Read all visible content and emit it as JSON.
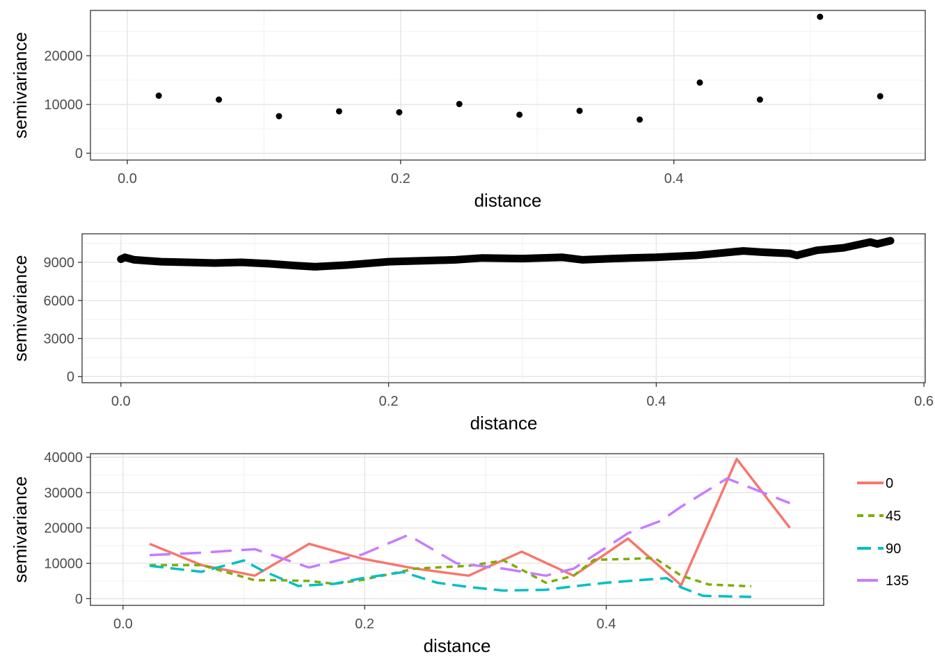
{
  "chart_data": [
    {
      "type": "scatter",
      "xlabel": "distance",
      "ylabel": "semivariance",
      "xlim": [
        -0.027,
        0.584
      ],
      "ylim": [
        -1400,
        29300
      ],
      "x_ticks": [
        0.0,
        0.2,
        0.4
      ],
      "x_tick_labels": [
        "0.0",
        "0.2",
        "0.4"
      ],
      "y_ticks": [
        0,
        10000,
        20000
      ],
      "y_tick_labels": [
        "0",
        "10000",
        "20000"
      ],
      "grid": true,
      "point_color": "#000000",
      "x": [
        0.023,
        0.067,
        0.111,
        0.155,
        0.199,
        0.243,
        0.287,
        0.331,
        0.375,
        0.419,
        0.463,
        0.507,
        0.551
      ],
      "y": [
        11800,
        11000,
        7600,
        8600,
        8400,
        10100,
        7900,
        8700,
        6900,
        14500,
        11000,
        28000,
        11700
      ]
    },
    {
      "type": "line",
      "xlabel": "distance",
      "ylabel": "semivariance",
      "xlim": [
        -0.029,
        0.601
      ],
      "ylim": [
        -480,
        11250
      ],
      "x_ticks": [
        0.0,
        0.2,
        0.4,
        0.6
      ],
      "x_tick_labels": [
        "0.0",
        "0.2",
        "0.4",
        "0.6"
      ],
      "y_ticks": [
        0,
        3000,
        6000,
        9000
      ],
      "y_tick_labels": [
        "0",
        "3000",
        "6000",
        "9000"
      ],
      "grid": true,
      "line_color": "#000000",
      "x": [
        0.0,
        0.003,
        0.01,
        0.03,
        0.05,
        0.07,
        0.09,
        0.11,
        0.13,
        0.145,
        0.17,
        0.2,
        0.25,
        0.27,
        0.3,
        0.33,
        0.345,
        0.38,
        0.4,
        0.43,
        0.45,
        0.465,
        0.48,
        0.5,
        0.505,
        0.52,
        0.54,
        0.56,
        0.565,
        0.575
      ],
      "y": [
        9250,
        9400,
        9200,
        9050,
        9000,
        8950,
        9000,
        8900,
        8750,
        8650,
        8800,
        9050,
        9200,
        9350,
        9300,
        9400,
        9200,
        9350,
        9400,
        9550,
        9750,
        9900,
        9800,
        9700,
        9550,
        9950,
        10150,
        10600,
        10450,
        10700
      ]
    },
    {
      "type": "line",
      "xlabel": "distance",
      "ylabel": "semivariance",
      "xlim": [
        -0.027,
        0.58
      ],
      "ylim": [
        -1900,
        41000
      ],
      "x_ticks": [
        0.0,
        0.2,
        0.4
      ],
      "x_tick_labels": [
        "0.0",
        "0.2",
        "0.4"
      ],
      "y_ticks": [
        0,
        10000,
        20000,
        30000,
        40000
      ],
      "y_tick_labels": [
        "0",
        "10000",
        "20000",
        "30000",
        "40000"
      ],
      "grid": true,
      "legend_position": "right",
      "series": [
        {
          "name": "0",
          "color": "#F8766D",
          "dash": "solid",
          "x": [
            0.022,
            0.065,
            0.109,
            0.154,
            0.198,
            0.242,
            0.286,
            0.33,
            0.373,
            0.418,
            0.462,
            0.508,
            0.552
          ],
          "y": [
            15500,
            9500,
            6500,
            15500,
            11300,
            8500,
            6500,
            13300,
            6500,
            17000,
            3800,
            39500,
            20000
          ]
        },
        {
          "name": "45",
          "color": "#7CAE00",
          "dash": "short",
          "x": [
            0.022,
            0.065,
            0.109,
            0.13,
            0.154,
            0.175,
            0.198,
            0.242,
            0.286,
            0.315,
            0.33,
            0.35,
            0.373,
            0.39,
            0.418,
            0.44,
            0.462,
            0.485,
            0.52
          ],
          "y": [
            9500,
            9500,
            5200,
            5200,
            5000,
            4200,
            5300,
            8500,
            9300,
            10800,
            8200,
            4500,
            6500,
            11000,
            11200,
            11500,
            6500,
            4000,
            3500
          ]
        },
        {
          "name": "90",
          "color": "#00BFC4",
          "dash": "long",
          "x": [
            0.022,
            0.065,
            0.1,
            0.115,
            0.145,
            0.175,
            0.198,
            0.232,
            0.26,
            0.286,
            0.315,
            0.35,
            0.373,
            0.4,
            0.43,
            0.45,
            0.462,
            0.48,
            0.52
          ],
          "y": [
            9300,
            7600,
            10800,
            8000,
            3600,
            4200,
            5800,
            7500,
            4500,
            3300,
            2300,
            2500,
            3500,
            4500,
            5300,
            5800,
            3200,
            800,
            500
          ]
        },
        {
          "name": "135",
          "color": "#C77CFF",
          "dash": "xlong",
          "x": [
            0.022,
            0.065,
            0.109,
            0.154,
            0.198,
            0.236,
            0.276,
            0.315,
            0.35,
            0.373,
            0.418,
            0.445,
            0.462,
            0.5,
            0.552
          ],
          "y": [
            12300,
            13000,
            14000,
            8800,
            12500,
            18000,
            10000,
            8500,
            6500,
            8500,
            18500,
            22000,
            26000,
            34000,
            27000
          ]
        }
      ]
    }
  ]
}
